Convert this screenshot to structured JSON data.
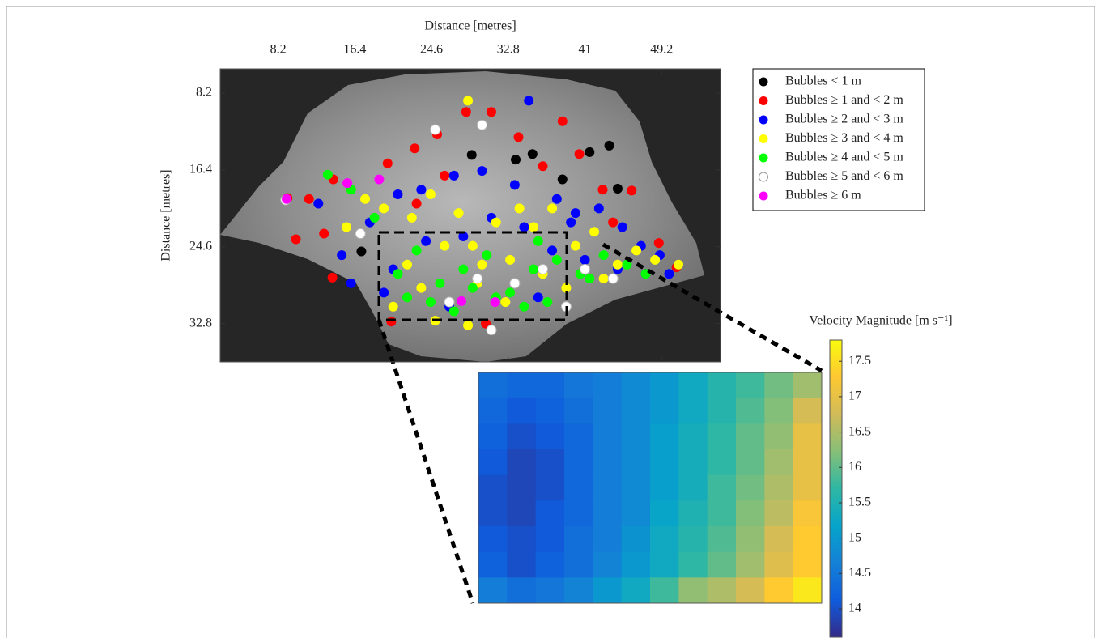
{
  "chart_data": [
    {
      "type": "scatter",
      "x_label": "Distance [metres]",
      "y_label": "Distance [metres]",
      "xlim": [
        2,
        55.5
      ],
      "ylim": [
        36.9,
        5.6
      ],
      "xticks": [
        8.2,
        16.4,
        24.6,
        32.8,
        41,
        49.2
      ],
      "yticks": [
        8.2,
        16.4,
        24.6,
        32.8
      ],
      "legend": "upper-right-outside",
      "series": [
        {
          "name": "Bubbles < 1 m",
          "color": "#000000",
          "x": [
            28.9,
            33.6,
            35.4,
            38.6,
            41.5,
            43.6,
            44.5,
            17.1
          ],
          "y": [
            14.8,
            15.3,
            14.7,
            17.4,
            14.5,
            13.8,
            18.4,
            25.1
          ]
        },
        {
          "name": "Bubbles ≥ 1 and < 2 m",
          "color": "#ff0000",
          "x": [
            9.2,
            10.1,
            11.5,
            13.1,
            14.1,
            14.0,
            19.9,
            22.8,
            25.2,
            28.3,
            31.0,
            33.9,
            38.6,
            40.4,
            42.9,
            46.0,
            48.9,
            50.8,
            20.3,
            30.4,
            36.5,
            26.0,
            23.0,
            44.0
          ],
          "y": [
            19.4,
            23.8,
            19.5,
            23.2,
            17.4,
            27.9,
            15.7,
            14.1,
            12.6,
            10.2,
            10.2,
            12.9,
            11.2,
            14.7,
            18.5,
            18.6,
            24.2,
            26.8,
            32.6,
            32.8,
            16.0,
            17.0,
            20.0,
            22.0
          ]
        },
        {
          "name": "Bubbles ≥ 2 and < 3 m",
          "color": "#0000ff",
          "x": [
            12.5,
            15.0,
            18.0,
            21.0,
            23.5,
            27.0,
            30.0,
            33.5,
            35.0,
            38.0,
            40.0,
            42.5,
            45.0,
            47.0,
            49.0,
            24.0,
            28.0,
            31.0,
            34.5,
            37.5,
            41.0,
            44.5,
            47.5,
            19.5,
            26.5,
            36.0,
            20.5,
            50.0,
            16.0,
            39.5
          ],
          "y": [
            20.0,
            25.5,
            22.0,
            19.0,
            18.5,
            17.0,
            16.5,
            18.0,
            9.0,
            19.5,
            21.0,
            20.5,
            22.5,
            24.5,
            25.5,
            24.0,
            23.5,
            21.5,
            22.5,
            25.0,
            26.0,
            27.0,
            27.5,
            29.5,
            31.0,
            30.0,
            27.0,
            27.5,
            28.5,
            22.0
          ]
        },
        {
          "name": "Bubbles ≥ 3 and < 4 m",
          "color": "#ffff00",
          "x": [
            15.5,
            17.5,
            19.5,
            22.0,
            24.5,
            27.5,
            29.0,
            31.5,
            33.0,
            35.5,
            37.5,
            40.0,
            42.0,
            44.5,
            46.5,
            20.5,
            23.5,
            26.0,
            29.5,
            32.5,
            36.5,
            39.0,
            43.0,
            48.5,
            25.0,
            30.0,
            34.0,
            22.5,
            28.5,
            51.0,
            28.5
          ],
          "y": [
            22.5,
            19.5,
            20.5,
            26.5,
            19.0,
            21.0,
            24.5,
            22.0,
            26.0,
            22.5,
            20.5,
            24.5,
            23.0,
            26.5,
            25.0,
            31.0,
            29.0,
            24.5,
            28.5,
            30.5,
            27.5,
            29.0,
            28.0,
            26.0,
            32.5,
            26.5,
            20.5,
            21.5,
            9.0,
            26.5,
            33.0
          ]
        },
        {
          "name": "Bubbles ≥ 4 and < 5 m",
          "color": "#00ff00",
          "x": [
            13.5,
            16.0,
            21.0,
            23.0,
            25.5,
            28.0,
            30.5,
            33.0,
            35.5,
            38.0,
            40.5,
            43.0,
            45.5,
            47.5,
            24.5,
            27.0,
            31.5,
            34.5,
            37.0,
            41.5,
            22.0,
            29.0,
            36.0,
            18.5
          ],
          "y": [
            16.9,
            18.5,
            27.5,
            25.0,
            28.5,
            27.0,
            25.5,
            29.5,
            27.0,
            26.0,
            27.5,
            25.5,
            26.5,
            27.5,
            30.5,
            31.5,
            30.0,
            31.0,
            30.5,
            28.0,
            30.0,
            29.0,
            24.0,
            21.5
          ]
        },
        {
          "name": "Bubbles ≥ 5 and < 6 m",
          "color": "#ffffff",
          "x": [
            9.0,
            17.0,
            25.0,
            30.0,
            29.5,
            33.5,
            36.5,
            41.0,
            44.0,
            39.0,
            26.5,
            31.0
          ],
          "y": [
            19.6,
            23.2,
            12.1,
            11.6,
            28.0,
            28.5,
            27.0,
            27.0,
            28.0,
            31.0,
            30.5,
            33.5
          ]
        },
        {
          "name": "Bubbles ≥ 6 m",
          "color": "#ff00ff",
          "x": [
            9.1,
            15.6,
            19.0,
            27.8,
            31.4
          ],
          "y": [
            19.5,
            17.8,
            17.4,
            30.4,
            30.5
          ]
        }
      ]
    },
    {
      "type": "heatmap",
      "colorbar_label": "Velocity Magnitude [m s⁻¹]",
      "clim": [
        13.6,
        17.8
      ],
      "colorbar_ticks": [
        14,
        14.5,
        15,
        15.5,
        16,
        16.5,
        17,
        17.5
      ],
      "colormap": [
        "#352a87",
        "#0f5cdd",
        "#1481d6",
        "#06a4ca",
        "#2eb7a4",
        "#87bf77",
        "#d1bb59",
        "#fec832",
        "#f9fb0e"
      ],
      "z": [
        [
          14.4,
          14.3,
          14.3,
          14.5,
          14.6,
          14.8,
          15.0,
          15.3,
          15.6,
          15.8,
          16.1,
          16.4
        ],
        [
          14.3,
          14.1,
          14.2,
          14.4,
          14.6,
          14.8,
          15.0,
          15.3,
          15.6,
          15.9,
          16.2,
          16.8
        ],
        [
          14.2,
          14.0,
          14.1,
          14.3,
          14.6,
          14.8,
          15.1,
          15.4,
          15.7,
          16.0,
          16.3,
          17.0
        ],
        [
          14.1,
          13.9,
          14.0,
          14.3,
          14.6,
          14.8,
          15.1,
          15.4,
          15.7,
          16.0,
          16.4,
          17.0
        ],
        [
          14.0,
          13.9,
          14.0,
          14.3,
          14.6,
          14.8,
          15.1,
          15.4,
          15.8,
          16.1,
          16.5,
          17.0
        ],
        [
          14.0,
          13.9,
          14.1,
          14.3,
          14.6,
          14.8,
          15.2,
          15.5,
          15.8,
          16.2,
          16.6,
          17.2
        ],
        [
          14.1,
          14.0,
          14.1,
          14.4,
          14.6,
          14.9,
          15.3,
          15.6,
          15.9,
          16.3,
          16.8,
          17.3
        ],
        [
          14.2,
          14.0,
          14.2,
          14.4,
          14.7,
          15.0,
          15.3,
          15.7,
          16.0,
          16.4,
          16.9,
          17.3
        ],
        [
          14.6,
          14.4,
          14.5,
          14.7,
          15.0,
          15.3,
          15.8,
          16.3,
          16.5,
          16.8,
          17.3,
          17.6
        ]
      ]
    }
  ]
}
